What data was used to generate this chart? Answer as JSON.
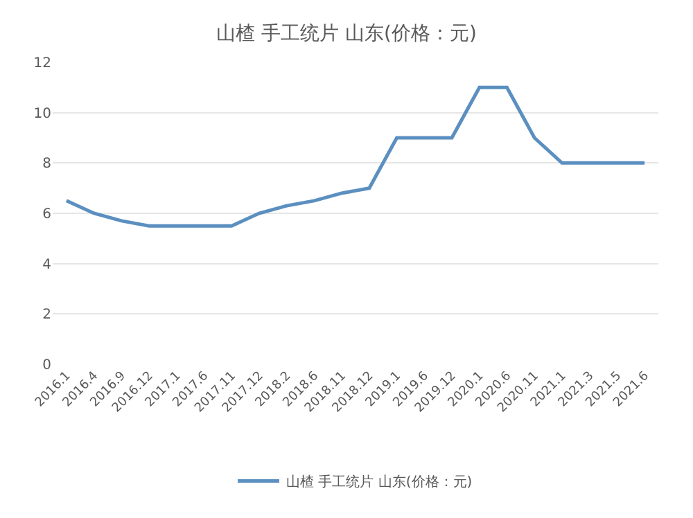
{
  "chart_data": {
    "type": "line",
    "title": "山楂 手工统片 山东(价格：元)",
    "categories": [
      "2016.1",
      "2016.4",
      "2016.9",
      "2016.12",
      "2017.1",
      "2017.6",
      "2017.11",
      "2017.12",
      "2018.2",
      "2018.6",
      "2018.11",
      "2018.12",
      "2019.1",
      "2019.6",
      "2019.12",
      "2020.1",
      "2020.6",
      "2020.11",
      "2021.1",
      "2021.3",
      "2021.5",
      "2021.6"
    ],
    "series": [
      {
        "name": "山楂 手工统片 山东(价格：元)",
        "color": "#5b8fc0",
        "values": [
          6.5,
          6,
          5.7,
          5.5,
          5.5,
          5.5,
          5.5,
          6,
          6.3,
          6.5,
          6.8,
          7,
          9,
          9,
          9,
          11,
          11,
          9,
          8,
          8,
          8,
          8
        ]
      }
    ],
    "ylim": [
      0,
      12
    ],
    "yticks": [
      0,
      2,
      4,
      6,
      8,
      10,
      12
    ],
    "grid": "y",
    "legend": "bottom",
    "marker": "none",
    "line_style": "solid"
  }
}
